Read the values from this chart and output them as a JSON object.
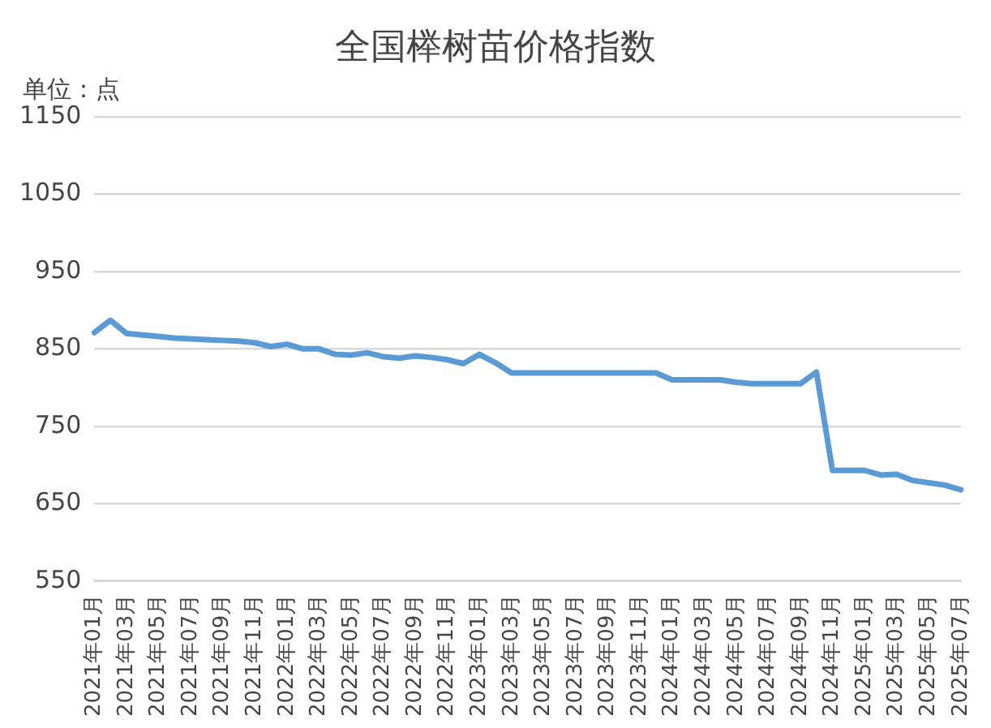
{
  "chart_data": {
    "type": "line",
    "title": "全国榉树苗价格指数",
    "annotations": [
      "单位：点"
    ],
    "categories": [
      "2021年01月",
      null,
      "2021年03月",
      null,
      "2021年05月",
      null,
      "2021年07月",
      null,
      "2021年09月",
      null,
      "2021年11月",
      null,
      "2022年01月",
      null,
      "2022年03月",
      null,
      "2022年05月",
      null,
      "2022年07月",
      null,
      "2022年09月",
      null,
      "2022年11月",
      null,
      "2023年01月",
      null,
      "2023年03月",
      null,
      "2023年05月",
      null,
      "2023年07月",
      null,
      "2023年09月",
      null,
      "2023年11月",
      null,
      "2024年01月",
      null,
      "2024年03月",
      null,
      "2024年05月",
      null,
      "2024年07月",
      null,
      "2024年09月",
      null,
      "2024年11月",
      null,
      "2025年01月",
      null,
      "2025年03月",
      null,
      "2025年05月",
      null,
      "2025年07月"
    ],
    "series": [
      {
        "color": "#5b9bd5",
        "values": [
          871,
          887,
          870,
          868,
          866,
          864,
          863,
          862,
          861,
          860,
          858,
          853,
          856,
          850,
          850,
          843,
          842,
          845,
          840,
          838,
          841,
          839,
          836,
          831,
          843,
          832,
          819,
          819,
          819,
          819,
          819,
          819,
          819,
          819,
          819,
          819,
          810,
          810,
          810,
          810,
          807,
          805,
          805,
          805,
          805,
          820,
          693,
          693,
          693,
          687,
          688,
          680,
          677,
          674,
          668
        ]
      }
    ],
    "ylim": [
      550,
      1150
    ],
    "yticks": [
      550,
      650,
      750,
      850,
      950,
      1050,
      1150
    ],
    "grid": "y",
    "legend": false,
    "marker": "none",
    "line_style": "solid"
  }
}
